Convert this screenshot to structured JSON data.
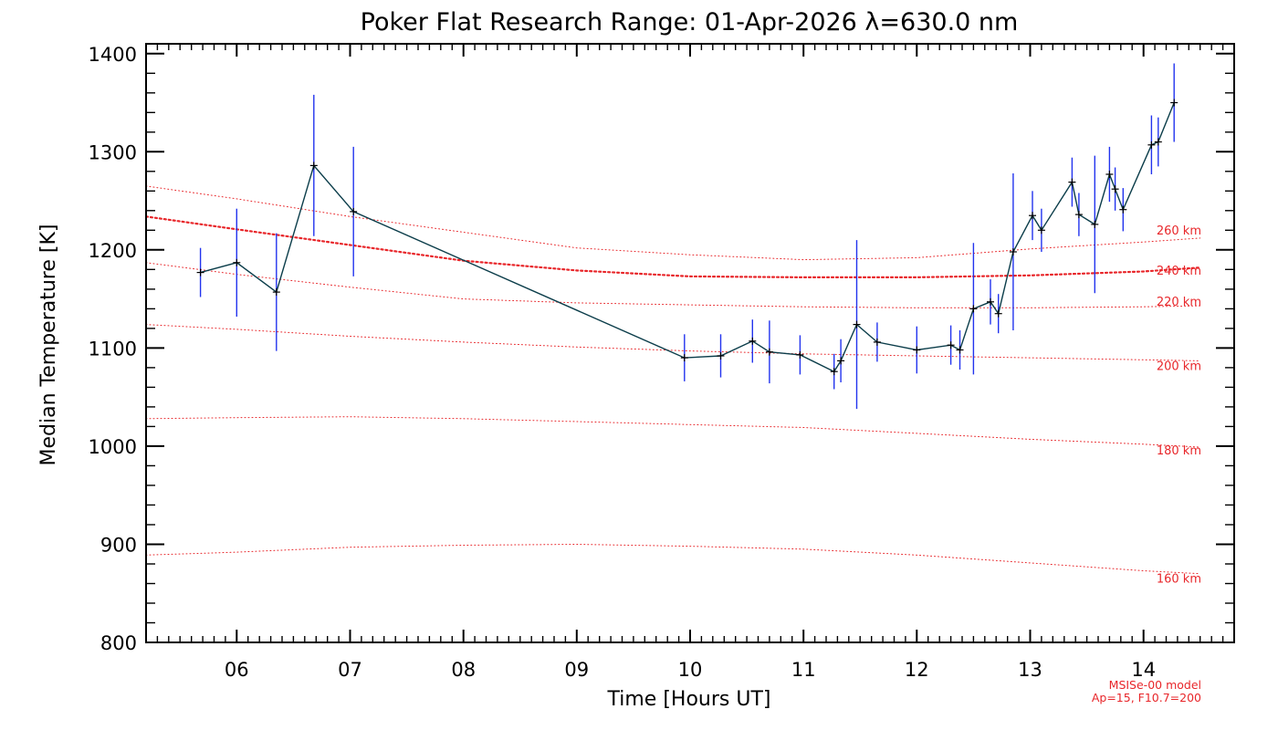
{
  "chart_data": {
    "type": "line",
    "title": "Poker Flat Research Range: 01-Apr-2026 λ=630.0 nm",
    "xlabel": "Time [Hours UT]",
    "ylabel": "Median Temperature [K]",
    "xlim": [
      5.2,
      14.8
    ],
    "ylim": [
      800,
      1410
    ],
    "x_ticks": [
      {
        "value": 6,
        "label": "06"
      },
      {
        "value": 7,
        "label": "07"
      },
      {
        "value": 8,
        "label": "08"
      },
      {
        "value": 9,
        "label": "09"
      },
      {
        "value": 10,
        "label": "10"
      },
      {
        "value": 11,
        "label": "11"
      },
      {
        "value": 12,
        "label": "12"
      },
      {
        "value": 13,
        "label": "13"
      },
      {
        "value": 14,
        "label": "14"
      }
    ],
    "y_ticks": [
      {
        "value": 800,
        "label": "800"
      },
      {
        "value": 900,
        "label": "900"
      },
      {
        "value": 1000,
        "label": "1000"
      },
      {
        "value": 1100,
        "label": "1100"
      },
      {
        "value": 1200,
        "label": "1200"
      },
      {
        "value": 1300,
        "label": "1300"
      },
      {
        "value": 1400,
        "label": "1400"
      }
    ],
    "series": [
      {
        "color": "#0b3d4a",
        "errorbar_color": "#2233ee",
        "points": [
          {
            "x": 5.68,
            "y": 1177,
            "err": 25
          },
          {
            "x": 6.0,
            "y": 1187,
            "err": 55
          },
          {
            "x": 6.35,
            "y": 1157,
            "err": 60
          },
          {
            "x": 6.68,
            "y": 1286,
            "err": 72
          },
          {
            "x": 7.03,
            "y": 1239,
            "err": 66
          },
          {
            "x": 9.95,
            "y": 1090,
            "err": 24
          },
          {
            "x": 10.27,
            "y": 1092,
            "err": 22
          },
          {
            "x": 10.55,
            "y": 1107,
            "err": 22
          },
          {
            "x": 10.7,
            "y": 1096,
            "err": 32
          },
          {
            "x": 10.97,
            "y": 1093,
            "err": 20
          },
          {
            "x": 11.27,
            "y": 1076,
            "err": 18
          },
          {
            "x": 11.33,
            "y": 1087,
            "err": 22
          },
          {
            "x": 11.47,
            "y": 1124,
            "err": 86
          },
          {
            "x": 11.65,
            "y": 1106,
            "err": 20
          },
          {
            "x": 12.0,
            "y": 1098,
            "err": 24
          },
          {
            "x": 12.3,
            "y": 1103,
            "err": 20
          },
          {
            "x": 12.38,
            "y": 1098,
            "err": 20
          },
          {
            "x": 12.5,
            "y": 1140,
            "err": 67
          },
          {
            "x": 12.65,
            "y": 1147,
            "err": 23
          },
          {
            "x": 12.72,
            "y": 1135,
            "err": 20
          },
          {
            "x": 12.85,
            "y": 1198,
            "err": 80
          },
          {
            "x": 13.02,
            "y": 1235,
            "err": 25
          },
          {
            "x": 13.1,
            "y": 1220,
            "err": 22
          },
          {
            "x": 13.37,
            "y": 1269,
            "err": 25
          },
          {
            "x": 13.43,
            "y": 1236,
            "err": 22
          },
          {
            "x": 13.57,
            "y": 1226,
            "err": 70
          },
          {
            "x": 13.7,
            "y": 1277,
            "err": 28
          },
          {
            "x": 13.75,
            "y": 1262,
            "err": 22
          },
          {
            "x": 13.82,
            "y": 1241,
            "err": 22
          },
          {
            "x": 14.07,
            "y": 1307,
            "err": 30
          },
          {
            "x": 14.13,
            "y": 1310,
            "err": 25
          },
          {
            "x": 14.27,
            "y": 1350,
            "err": 40
          }
        ]
      }
    ],
    "model_curves": {
      "color": "#e8262a",
      "x": [
        5.2,
        6.0,
        7.0,
        8.0,
        9.0,
        10.0,
        11.0,
        12.0,
        13.0,
        14.0,
        14.5
      ],
      "curves": [
        {
          "label": "260 km",
          "style": "dotted",
          "y": [
            1265,
            1252,
            1234,
            1218,
            1202,
            1195,
            1190,
            1192,
            1201,
            1208,
            1212
          ]
        },
        {
          "label": "240 km",
          "style": "dashed",
          "y": [
            1234,
            1221,
            1205,
            1189,
            1179,
            1173,
            1172,
            1172,
            1174,
            1178,
            1182
          ]
        },
        {
          "label": "220 km",
          "style": "dotted",
          "y": [
            1187,
            1175,
            1162,
            1150,
            1146,
            1144,
            1142,
            1141,
            1141,
            1142,
            1143
          ]
        },
        {
          "label": "200 km",
          "style": "dotted",
          "y": [
            1124,
            1119,
            1112,
            1106,
            1101,
            1097,
            1094,
            1092,
            1090,
            1088,
            1087
          ]
        },
        {
          "label": "180 km",
          "style": "dotted",
          "y": [
            1028,
            1029,
            1030,
            1028,
            1025,
            1022,
            1019,
            1013,
            1007,
            1002,
            999
          ]
        },
        {
          "label": "160 km",
          "style": "dotted",
          "y": [
            889,
            892,
            897,
            899,
            900,
            898,
            895,
            889,
            881,
            873,
            870
          ]
        }
      ]
    },
    "notes": [
      "MSISe-00 model",
      "Ap=15, F10.7=200"
    ]
  }
}
